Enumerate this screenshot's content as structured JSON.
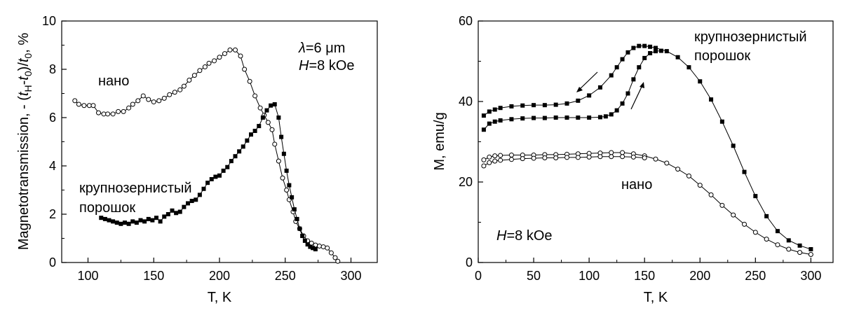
{
  "chart_data": [
    {
      "type": "scatter",
      "xlabel": "T, K",
      "ylabel": "Magnetotransmission, - (t_H-t_0)/t_0, %",
      "ylabel_parts": {
        "a": "Magnetotransmission, - (",
        "t1": "t",
        "s1": "H",
        "m": "-",
        "t2": "t",
        "s2": "0",
        "c": ")/",
        "t3": "t",
        "s3": "0",
        "e": ", %"
      },
      "xlim": [
        80,
        320
      ],
      "ylim": [
        0,
        10
      ],
      "xticks": [
        100,
        150,
        200,
        250,
        300
      ],
      "yticks": [
        0,
        2,
        4,
        6,
        8,
        10
      ],
      "annotations": {
        "lambda_sym": "λ",
        "lambda_val": "=6 μm",
        "field_sym": "H",
        "field_val": "=8 kOe",
        "nano": "нано",
        "coarse_line1": "крупнозернистый",
        "coarse_line2": "порошок"
      },
      "series": [
        {
          "marker": "open-circle",
          "points": [
            [
              90,
              6.7
            ],
            [
              93,
              6.55
            ],
            [
              97,
              6.5
            ],
            [
              101,
              6.5
            ],
            [
              104,
              6.5
            ],
            [
              108,
              6.2
            ],
            [
              112,
              6.15
            ],
            [
              115,
              6.15
            ],
            [
              119,
              6.15
            ],
            [
              123,
              6.25
            ],
            [
              127,
              6.25
            ],
            [
              131,
              6.4
            ],
            [
              134,
              6.55
            ],
            [
              138,
              6.7
            ],
            [
              142,
              6.9
            ],
            [
              146,
              6.75
            ],
            [
              150,
              6.65
            ],
            [
              154,
              6.7
            ],
            [
              158,
              6.8
            ],
            [
              162,
              6.95
            ],
            [
              166,
              7.05
            ],
            [
              170,
              7.15
            ],
            [
              173,
              7.3
            ],
            [
              177,
              7.55
            ],
            [
              181,
              7.75
            ],
            [
              185,
              7.95
            ],
            [
              189,
              8.1
            ],
            [
              192,
              8.25
            ],
            [
              196,
              8.35
            ],
            [
              200,
              8.5
            ],
            [
              204,
              8.65
            ],
            [
              208,
              8.8
            ],
            [
              212,
              8.8
            ],
            [
              216,
              8.55
            ],
            [
              219,
              8.0
            ],
            [
              223,
              7.5
            ],
            [
              227,
              6.9
            ],
            [
              231,
              6.4
            ],
            [
              234,
              6.1
            ],
            [
              237,
              5.8
            ],
            [
              240,
              5.5
            ],
            [
              242,
              4.9
            ],
            [
              245,
              4.2
            ],
            [
              248,
              3.5
            ],
            [
              251,
              3.0
            ],
            [
              253,
              2.6
            ],
            [
              256,
              2.1
            ],
            [
              258,
              1.7
            ],
            [
              261,
              1.4
            ],
            [
              264,
              1.1
            ],
            [
              267,
              0.9
            ],
            [
              270,
              0.8
            ],
            [
              273,
              0.72
            ],
            [
              276,
              0.68
            ],
            [
              279,
              0.65
            ],
            [
              282,
              0.6
            ],
            [
              285,
              0.4
            ],
            [
              288,
              0.2
            ],
            [
              290,
              0.05
            ]
          ]
        },
        {
          "marker": "filled-square",
          "points": [
            [
              110,
              1.85
            ],
            [
              113,
              1.8
            ],
            [
              116,
              1.75
            ],
            [
              119,
              1.7
            ],
            [
              122,
              1.65
            ],
            [
              125,
              1.6
            ],
            [
              128,
              1.65
            ],
            [
              131,
              1.6
            ],
            [
              134,
              1.7
            ],
            [
              137,
              1.65
            ],
            [
              140,
              1.75
            ],
            [
              143,
              1.7
            ],
            [
              146,
              1.8
            ],
            [
              149,
              1.75
            ],
            [
              152,
              1.85
            ],
            [
              155,
              1.7
            ],
            [
              158,
              1.9
            ],
            [
              161,
              2.0
            ],
            [
              164,
              2.15
            ],
            [
              167,
              2.05
            ],
            [
              170,
              2.1
            ],
            [
              173,
              2.3
            ],
            [
              176,
              2.45
            ],
            [
              179,
              2.55
            ],
            [
              182,
              2.6
            ],
            [
              185,
              2.8
            ],
            [
              188,
              3.05
            ],
            [
              191,
              3.3
            ],
            [
              194,
              3.45
            ],
            [
              197,
              3.55
            ],
            [
              200,
              3.6
            ],
            [
              203,
              3.8
            ],
            [
              206,
              3.95
            ],
            [
              209,
              4.2
            ],
            [
              212,
              4.4
            ],
            [
              215,
              4.6
            ],
            [
              218,
              4.8
            ],
            [
              221,
              5.05
            ],
            [
              224,
              5.3
            ],
            [
              227,
              5.45
            ],
            [
              230,
              5.65
            ],
            [
              233,
              6.0
            ],
            [
              236,
              6.3
            ],
            [
              239,
              6.5
            ],
            [
              242,
              6.55
            ],
            [
              245,
              6.0
            ],
            [
              247,
              5.2
            ],
            [
              249,
              4.5
            ],
            [
              251,
              3.8
            ],
            [
              253,
              3.2
            ],
            [
              255,
              2.7
            ],
            [
              257,
              2.2
            ],
            [
              259,
              1.8
            ],
            [
              261,
              1.4
            ],
            [
              263,
              1.1
            ],
            [
              265,
              0.9
            ],
            [
              267,
              0.75
            ],
            [
              269,
              0.65
            ],
            [
              271,
              0.6
            ],
            [
              273,
              0.55
            ]
          ]
        }
      ]
    },
    {
      "type": "scatter",
      "xlabel": "T, K",
      "ylabel": "M, emu/g",
      "xlim": [
        0,
        320
      ],
      "ylim": [
        0,
        60
      ],
      "xticks": [
        0,
        50,
        100,
        150,
        200,
        250,
        300
      ],
      "yticks": [
        0,
        20,
        40,
        60
      ],
      "annotations": {
        "coarse_line1": "крупнозернистый",
        "coarse_line2": "порошок",
        "nano": "нано",
        "field_sym": "H",
        "field_val": "=8 kOe"
      },
      "series": [
        {
          "name_hint": "coarse cooling (upper branch)",
          "marker": "filled-square",
          "points": [
            [
              5,
              36.5
            ],
            [
              10,
              37.5
            ],
            [
              15,
              38.0
            ],
            [
              20,
              38.4
            ],
            [
              30,
              38.8
            ],
            [
              40,
              39.0
            ],
            [
              50,
              39.1
            ],
            [
              60,
              39.1
            ],
            [
              70,
              39.2
            ],
            [
              80,
              39.5
            ],
            [
              90,
              40.2
            ],
            [
              100,
              41.5
            ],
            [
              110,
              43.5
            ],
            [
              120,
              46.5
            ],
            [
              125,
              48.5
            ],
            [
              130,
              50.5
            ],
            [
              135,
              52.2
            ],
            [
              140,
              53.3
            ],
            [
              145,
              53.8
            ],
            [
              150,
              53.8
            ],
            [
              155,
              53.6
            ],
            [
              160,
              53.3
            ],
            [
              170,
              52.5
            ],
            [
              180,
              51.0
            ],
            [
              190,
              48.5
            ],
            [
              200,
              45.0
            ],
            [
              210,
              40.5
            ],
            [
              220,
              35.0
            ],
            [
              230,
              29.0
            ],
            [
              240,
              22.5
            ],
            [
              250,
              16.5
            ],
            [
              260,
              11.5
            ],
            [
              270,
              7.8
            ],
            [
              280,
              5.5
            ],
            [
              290,
              4.2
            ],
            [
              300,
              3.3
            ]
          ]
        },
        {
          "name_hint": "coarse heating (lower branch)",
          "marker": "filled-square",
          "points": [
            [
              5,
              33.0
            ],
            [
              10,
              34.5
            ],
            [
              15,
              35.0
            ],
            [
              20,
              35.3
            ],
            [
              30,
              35.6
            ],
            [
              40,
              35.8
            ],
            [
              50,
              35.9
            ],
            [
              60,
              35.9
            ],
            [
              70,
              36.0
            ],
            [
              80,
              36.0
            ],
            [
              90,
              36.0
            ],
            [
              100,
              36.0
            ],
            [
              110,
              36.1
            ],
            [
              115,
              36.3
            ],
            [
              120,
              36.8
            ],
            [
              125,
              37.8
            ],
            [
              130,
              39.5
            ],
            [
              135,
              42.0
            ],
            [
              140,
              45.5
            ],
            [
              145,
              48.5
            ],
            [
              150,
              50.8
            ],
            [
              155,
              52.0
            ],
            [
              160,
              52.5
            ],
            [
              165,
              52.6
            ]
          ]
        },
        {
          "name_hint": "nano upper branch",
          "marker": "open-circle",
          "points": [
            [
              5,
              25.5
            ],
            [
              10,
              26.2
            ],
            [
              15,
              26.5
            ],
            [
              20,
              26.6
            ],
            [
              30,
              26.7
            ],
            [
              40,
              26.7
            ],
            [
              50,
              26.7
            ],
            [
              60,
              26.8
            ],
            [
              70,
              26.8
            ],
            [
              80,
              26.9
            ],
            [
              90,
              27.0
            ],
            [
              100,
              27.1
            ],
            [
              110,
              27.2
            ],
            [
              120,
              27.3
            ],
            [
              130,
              27.3
            ],
            [
              140,
              27.0
            ],
            [
              150,
              26.5
            ],
            [
              160,
              25.7
            ],
            [
              170,
              24.7
            ],
            [
              180,
              23.2
            ],
            [
              190,
              21.5
            ],
            [
              200,
              19.2
            ],
            [
              210,
              16.8
            ],
            [
              220,
              14.2
            ],
            [
              230,
              11.8
            ],
            [
              240,
              9.5
            ],
            [
              250,
              7.5
            ],
            [
              260,
              5.8
            ],
            [
              270,
              4.4
            ],
            [
              280,
              3.3
            ],
            [
              290,
              2.5
            ],
            [
              300,
              2.0
            ]
          ]
        },
        {
          "name_hint": "nano lower branch",
          "marker": "open-circle",
          "points": [
            [
              5,
              24.0
            ],
            [
              10,
              24.8
            ],
            [
              15,
              25.2
            ],
            [
              20,
              25.4
            ],
            [
              30,
              25.6
            ],
            [
              40,
              25.8
            ],
            [
              50,
              25.9
            ],
            [
              60,
              26.0
            ],
            [
              70,
              26.0
            ],
            [
              80,
              26.1
            ],
            [
              90,
              26.1
            ],
            [
              100,
              26.2
            ],
            [
              110,
              26.3
            ],
            [
              120,
              26.3
            ],
            [
              130,
              26.3
            ],
            [
              140,
              26.2
            ],
            [
              150,
              26.0
            ]
          ]
        }
      ]
    }
  ]
}
